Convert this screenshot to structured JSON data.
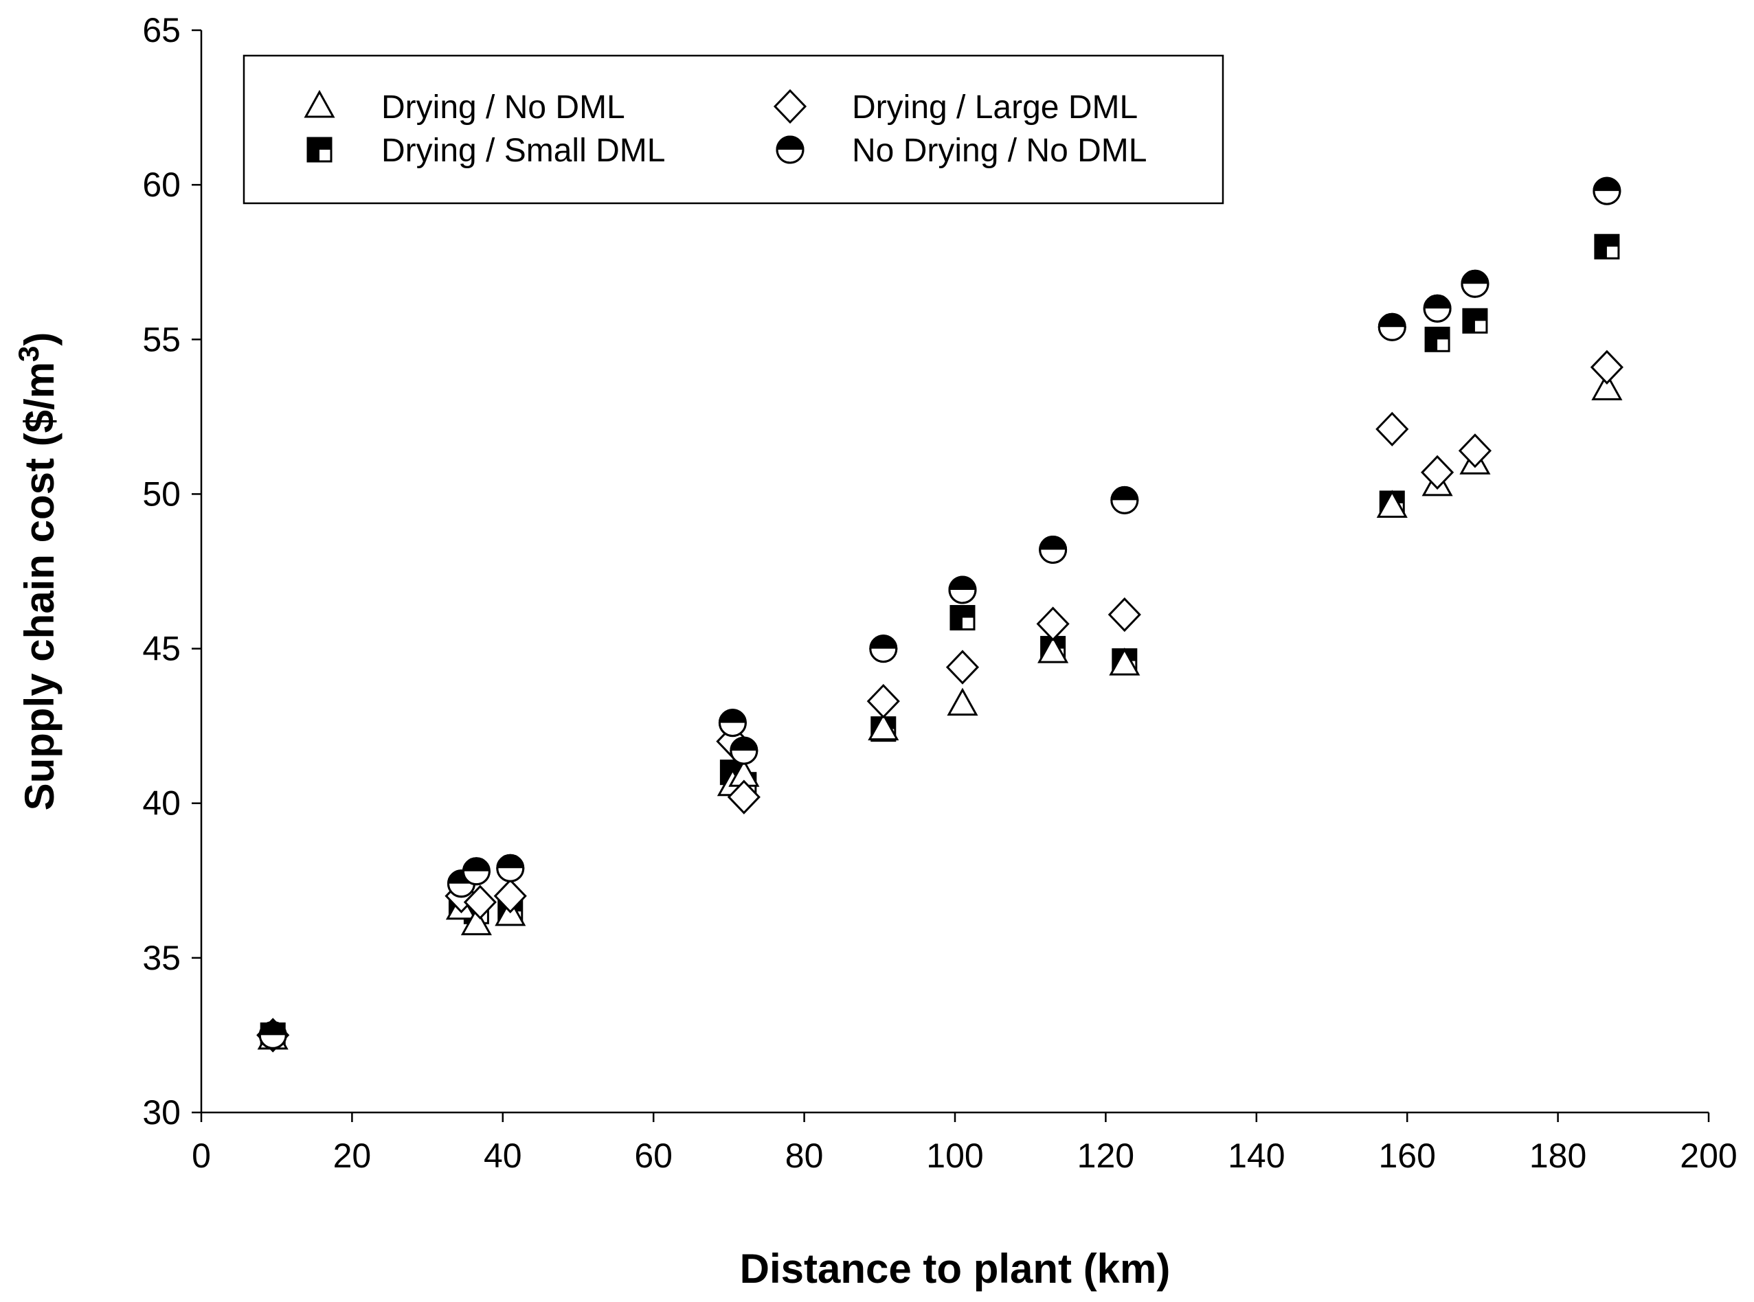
{
  "chart_data": {
    "type": "scatter",
    "title": "",
    "xlabel": "Distance to plant (km)",
    "ylabel_main": "Supply chain cost ($/m",
    "ylabel_sup": "3",
    "ylabel_end": ")",
    "xlim": [
      0,
      200
    ],
    "ylim": [
      30,
      65
    ],
    "xticks": [
      0,
      20,
      40,
      60,
      80,
      100,
      120,
      140,
      160,
      180,
      200
    ],
    "yticks": [
      30,
      35,
      40,
      45,
      50,
      55,
      60,
      65
    ],
    "legend_position": "top-left",
    "series": [
      {
        "name": "Drying / No DML",
        "marker": "triangle-open",
        "points": [
          {
            "x": 9.5,
            "y": 32.4
          },
          {
            "x": 34.5,
            "y": 36.6
          },
          {
            "x": 36.5,
            "y": 36.1
          },
          {
            "x": 41.0,
            "y": 36.4
          },
          {
            "x": 70.5,
            "y": 40.6
          },
          {
            "x": 72.0,
            "y": 40.9
          },
          {
            "x": 90.5,
            "y": 42.4
          },
          {
            "x": 101.0,
            "y": 43.2
          },
          {
            "x": 113.0,
            "y": 44.9
          },
          {
            "x": 122.5,
            "y": 44.5
          },
          {
            "x": 158.0,
            "y": 49.6
          },
          {
            "x": 164.0,
            "y": 50.3
          },
          {
            "x": 169.0,
            "y": 51.0
          },
          {
            "x": 186.5,
            "y": 53.4
          }
        ]
      },
      {
        "name": "Drying / Small DML",
        "marker": "square-checker",
        "points": [
          {
            "x": 9.5,
            "y": 32.5
          },
          {
            "x": 34.5,
            "y": 36.7
          },
          {
            "x": 36.5,
            "y": 36.5
          },
          {
            "x": 41.0,
            "y": 36.5
          },
          {
            "x": 70.5,
            "y": 41.0
          },
          {
            "x": 72.0,
            "y": 40.6
          },
          {
            "x": 90.5,
            "y": 42.4
          },
          {
            "x": 101.0,
            "y": 46.0
          },
          {
            "x": 113.0,
            "y": 45.0
          },
          {
            "x": 122.5,
            "y": 44.6
          },
          {
            "x": 158.0,
            "y": 49.7
          },
          {
            "x": 164.0,
            "y": 55.0
          },
          {
            "x": 169.0,
            "y": 55.6
          },
          {
            "x": 186.5,
            "y": 58.0
          }
        ]
      },
      {
        "name": "Drying / Large DML",
        "marker": "diamond-open",
        "points": [
          {
            "x": 9.5,
            "y": 32.5
          },
          {
            "x": 34.5,
            "y": 37.0
          },
          {
            "x": 37.0,
            "y": 36.8
          },
          {
            "x": 41.0,
            "y": 37.0
          },
          {
            "x": 70.5,
            "y": 42.0
          },
          {
            "x": 72.0,
            "y": 40.2
          },
          {
            "x": 90.5,
            "y": 43.3
          },
          {
            "x": 101.0,
            "y": 44.4
          },
          {
            "x": 113.0,
            "y": 45.8
          },
          {
            "x": 122.5,
            "y": 46.1
          },
          {
            "x": 158.0,
            "y": 52.1
          },
          {
            "x": 164.0,
            "y": 50.7
          },
          {
            "x": 169.0,
            "y": 51.4
          },
          {
            "x": 186.5,
            "y": 54.1
          }
        ]
      },
      {
        "name": "No Drying / No DML",
        "marker": "circle-half",
        "points": [
          {
            "x": 9.5,
            "y": 32.5
          },
          {
            "x": 34.5,
            "y": 37.4
          },
          {
            "x": 36.5,
            "y": 37.8
          },
          {
            "x": 41.0,
            "y": 37.9
          },
          {
            "x": 70.5,
            "y": 42.6
          },
          {
            "x": 72.0,
            "y": 41.7
          },
          {
            "x": 90.5,
            "y": 45.0
          },
          {
            "x": 101.0,
            "y": 46.9
          },
          {
            "x": 113.0,
            "y": 48.2
          },
          {
            "x": 122.5,
            "y": 49.8
          },
          {
            "x": 158.0,
            "y": 55.4
          },
          {
            "x": 164.0,
            "y": 56.0
          },
          {
            "x": 169.0,
            "y": 56.8
          },
          {
            "x": 186.5,
            "y": 59.8
          }
        ]
      }
    ]
  },
  "legend": {
    "items": [
      {
        "label": "Drying / No DML",
        "marker": "triangle-open"
      },
      {
        "label": "Drying / Small DML",
        "marker": "square-checker"
      },
      {
        "label": "Drying / Large DML",
        "marker": "diamond-open"
      },
      {
        "label": "No Drying / No DML",
        "marker": "circle-half"
      }
    ]
  }
}
